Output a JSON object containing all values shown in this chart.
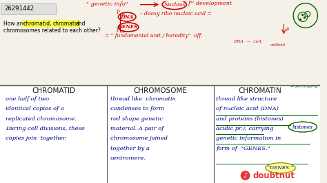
{
  "bg_color": "#f5f0e8",
  "table_bg": "#ffffff",
  "id_text": "26291442",
  "col_headers": [
    "CHROMATID",
    "CHROMOSOME",
    "CHROMATIN"
  ],
  "col1_text": [
    "one half of two",
    "identical copies of a",
    "replicated chromosome.",
    "During cell divisions, these",
    "copies join  together."
  ],
  "col2_text": [
    "thread like  chromatin",
    "condenses to form",
    "rod shape genetic",
    "material. A pair of",
    "chromosome joined",
    "together by a",
    "centromere."
  ],
  "col3_text": [
    "thread like structure",
    "of nucleic acid (DNA)",
    "and proteins (histones)",
    "acidic pr.), carrying",
    "genetic information in",
    "form of  \"GENES.\""
  ],
  "header_color": "#1a1a1a",
  "body_text_color": "#00008b",
  "red_color": "#cc0000",
  "green_color": "#006400",
  "line_color": "#555555",
  "doubtnut_red": "#e53935",
  "body_fontsize": 6.0,
  "header_fontsize": 7.5,
  "logo_text": "doubtnut"
}
